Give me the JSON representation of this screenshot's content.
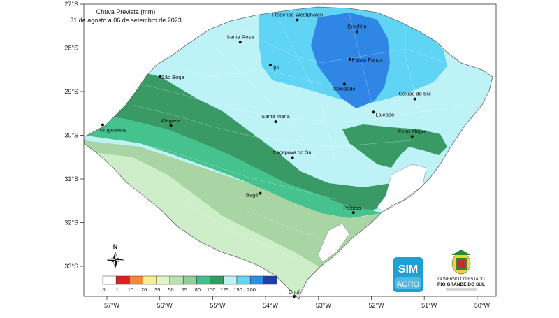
{
  "title": "Chuva Prevista (mm)",
  "subtitle": "31 de agosto a 06 de setembro de 2023",
  "lat_labels": [
    {
      "text": "27°S",
      "lat": -27
    },
    {
      "text": "28°S",
      "lat": -28
    },
    {
      "text": "29°S",
      "lat": -29
    },
    {
      "text": "30°S",
      "lat": -30
    },
    {
      "text": "31°S",
      "lat": -31
    },
    {
      "text": "32°S",
      "lat": -32
    },
    {
      "text": "33°S",
      "lat": -33
    }
  ],
  "lon_labels": [
    {
      "text": "57°W",
      "lon": -57
    },
    {
      "text": "56°W",
      "lon": -56
    },
    {
      "text": "55°W",
      "lon": -55
    },
    {
      "text": "54°W",
      "lon": -54
    },
    {
      "text": "53°W",
      "lon": -53
    },
    {
      "text": "52°W",
      "lon": -52
    },
    {
      "text": "51°W",
      "lon": -51
    },
    {
      "text": "50°W",
      "lon": -50
    }
  ],
  "cities": [
    {
      "name": "Frederico Westphalen",
      "lon": -53.4,
      "lat": -27.36
    },
    {
      "name": "Erechim",
      "lon": -52.27,
      "lat": -27.63
    },
    {
      "name": "Santa Rosa",
      "lon": -54.48,
      "lat": -27.87
    },
    {
      "name": "Passo Fundo",
      "lon": -52.41,
      "lat": -28.26
    },
    {
      "name": "Ijuí",
      "lon": -53.91,
      "lat": -28.39
    },
    {
      "name": "São Borja",
      "lon": -56.0,
      "lat": -28.66
    },
    {
      "name": "Soledade",
      "lon": -52.51,
      "lat": -28.83
    },
    {
      "name": "Caxias do Sul",
      "lon": -51.18,
      "lat": -29.17
    },
    {
      "name": "Lajeado",
      "lon": -51.96,
      "lat": -29.47
    },
    {
      "name": "Santa Maria",
      "lon": -53.81,
      "lat": -29.69
    },
    {
      "name": "Alegrete",
      "lon": -55.79,
      "lat": -29.78
    },
    {
      "name": "Uruguaiana",
      "lon": -57.08,
      "lat": -29.76
    },
    {
      "name": "Porto Alegre",
      "lon": -51.23,
      "lat": -30.03
    },
    {
      "name": "Caçapava do Sul",
      "lon": -53.49,
      "lat": -30.51
    },
    {
      "name": "Bagé",
      "lon": -54.1,
      "lat": -31.33
    },
    {
      "name": "Pelotas",
      "lon": -52.34,
      "lat": -31.77
    },
    {
      "name": "Chuí",
      "lon": -53.46,
      "lat": -33.69
    }
  ],
  "legend": {
    "ticks": [
      "0",
      "1",
      "10",
      "20",
      "35",
      "50",
      "65",
      "80",
      "100",
      "125",
      "150",
      "200"
    ],
    "colors": [
      "#ffffff",
      "#e02020",
      "#f08a30",
      "#f5f08a",
      "#dff5c8",
      "#b8e2b0",
      "#8fcf9a",
      "#3fbf8a",
      "#2e9e60",
      "#bff2f5",
      "#5fd6f2",
      "#2a8fe8",
      "#1f3fa8"
    ]
  },
  "rain_colors": {
    "c35_50": "#cdeec9",
    "c50_65": "#a9d5a4",
    "c65_80": "#8fc99b",
    "c80_100": "#46c28e",
    "c100_125": "#3a9a66",
    "c125_150": "#bdf3f7",
    "c150_200": "#5fd4f5",
    "c200": "#2f86e5"
  },
  "compass": {
    "north": "N"
  },
  "logos": {
    "sim": "SIM",
    "agro": "AGRO",
    "gov_line1": "GOVERNO DO ESTADO",
    "gov_line2": "RIO GRANDE DO SUL"
  }
}
